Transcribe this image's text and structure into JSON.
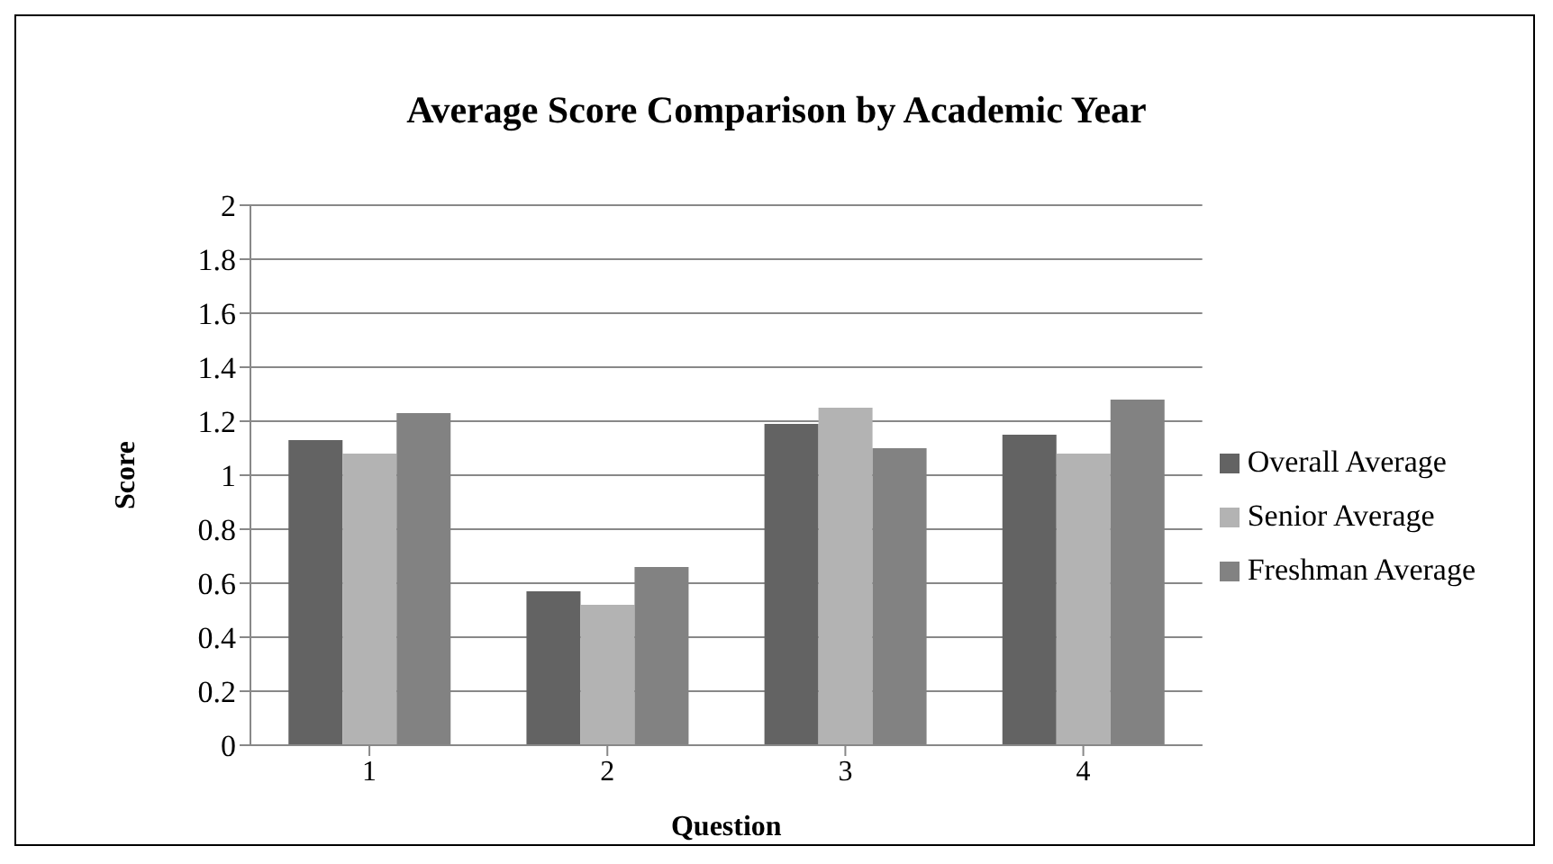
{
  "chart_data": {
    "type": "bar",
    "title": "Average Score Comparison by Academic Year",
    "xlabel": "Question",
    "ylabel": "Score",
    "categories": [
      "1",
      "2",
      "3",
      "4"
    ],
    "series": [
      {
        "name": "Overall Average",
        "color": "#636363",
        "values": [
          1.13,
          0.57,
          1.19,
          1.15
        ]
      },
      {
        "name": "Senior Average",
        "color": "#b3b3b3",
        "values": [
          1.08,
          0.52,
          1.25,
          1.08
        ]
      },
      {
        "name": "Freshman Average",
        "color": "#828282",
        "values": [
          1.23,
          0.66,
          1.1,
          1.28
        ]
      }
    ],
    "ylim": [
      0,
      2
    ],
    "yticks": [
      0,
      0.2,
      0.4,
      0.6,
      0.8,
      1,
      1.2,
      1.4,
      1.6,
      1.8,
      2
    ],
    "grid": "y",
    "legend": "right"
  }
}
